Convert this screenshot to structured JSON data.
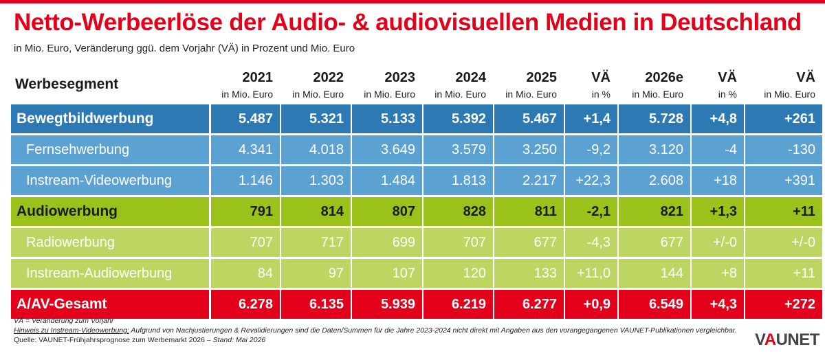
{
  "title": "Netto-Werbeerlöse der Audio- & audiovisuellen Medien in Deutschland",
  "subtitle": "in Mio. Euro, Veränderung ggü. dem Vorjahr (VÄ) in Prozent und Mio. Euro",
  "colors": {
    "red": "#e3001b",
    "blue_main": "#2c79b4",
    "blue_sub": "#5ba1d2",
    "green_main": "#9bc21b",
    "green_sub": "#bcd661",
    "total_red": "#e3001b"
  },
  "chart_data": {
    "type": "table",
    "segment_header": "Werbesegment",
    "columns": [
      {
        "year": "2021",
        "unit": "in Mio. Euro"
      },
      {
        "year": "2022",
        "unit": "in Mio. Euro"
      },
      {
        "year": "2023",
        "unit": "in Mio. Euro"
      },
      {
        "year": "2024",
        "unit": "in Mio. Euro"
      },
      {
        "year": "2025",
        "unit": "in Mio. Euro"
      },
      {
        "year": "VÄ",
        "unit": "in %"
      },
      {
        "year": "2026e",
        "unit": "in Mio. Euro"
      },
      {
        "year": "VÄ",
        "unit": "in %"
      },
      {
        "year": "VÄ",
        "unit": "in Mio. Euro"
      }
    ],
    "rows": [
      {
        "label": "Bewegtbildwerbung",
        "kind": "main",
        "group": "blue",
        "values": [
          "5.487",
          "5.321",
          "5.133",
          "5.392",
          "5.467",
          "+1,4",
          "5.728",
          "+4,8",
          "+261"
        ]
      },
      {
        "label": "Fernsehwerbung",
        "kind": "sub",
        "group": "blue",
        "values": [
          "4.341",
          "4.018",
          "3.649",
          "3.579",
          "3.250",
          "-9,2",
          "3.120",
          "-4",
          "-130"
        ]
      },
      {
        "label": "Instream-Videowerbung",
        "kind": "sub",
        "group": "blue",
        "values": [
          "1.146",
          "1.303",
          "1.484",
          "1.813",
          "2.217",
          "+22,3",
          "2.608",
          "+18",
          "+391"
        ]
      },
      {
        "label": "Audiowerbung",
        "kind": "main",
        "group": "green",
        "values": [
          "791",
          "814",
          "807",
          "828",
          "811",
          "-2,1",
          "821",
          "+1,3",
          "+11"
        ]
      },
      {
        "label": "Radiowerbung",
        "kind": "sub",
        "group": "green",
        "values": [
          "707",
          "717",
          "699",
          "707",
          "677",
          "-4,3",
          "677",
          "+/-0",
          "+/-0"
        ]
      },
      {
        "label": "Instream-Audiowerbung",
        "kind": "sub",
        "group": "green",
        "values": [
          "84",
          "97",
          "107",
          "120",
          "133",
          "+11,0",
          "144",
          "+8",
          "+11"
        ]
      },
      {
        "label": "A/AV-Gesamt",
        "kind": "main",
        "group": "total",
        "values": [
          "6.278",
          "6.135",
          "5.939",
          "6.219",
          "6.277",
          "+0,9",
          "6.549",
          "+4,3",
          "+272"
        ]
      }
    ]
  },
  "notes": {
    "va_def": "VÄ = Veränderung zum Vorjahr",
    "hint_label": "Hinweis zu Instream-Videowerbung:",
    "hint_text": " Aufgrund von Nachjustierungen & Revalidierungen sind die Daten/Summen für die Jahre 2023-2024 nicht direkt mit Angaben aus den vorangegangenen VAUNET-Publikationen vergleichbar.",
    "source_label": "Quelle: VAUNET-Frühjahrsprognose zum Werbemarkt 2026",
    "source_stand": " – Stand: Mai 2026"
  },
  "logo": {
    "prefix": "V",
    "accent": "A",
    "suffix": "UNET"
  }
}
